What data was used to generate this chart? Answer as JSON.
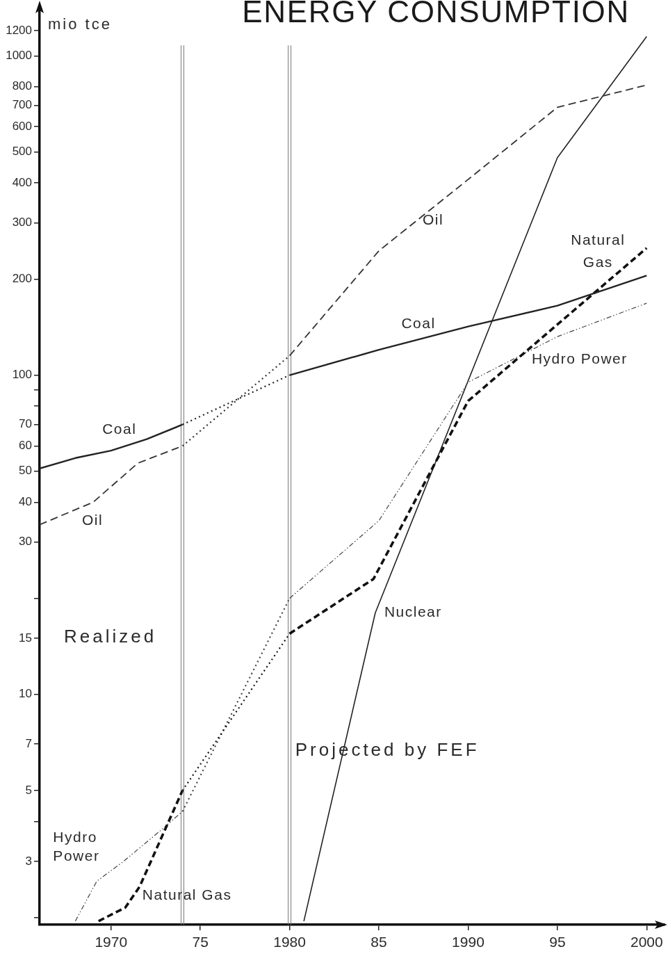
{
  "chart_data": {
    "type": "line",
    "title": "ENERGY CONSUMPTION",
    "ylabel": "mio tce",
    "annotations": [
      "Realized",
      "Projected by FEF"
    ],
    "log": "y",
    "xlim": [
      1966,
      2001
    ],
    "xticks": [
      1970,
      {
        "value": 1975,
        "label": "75"
      },
      1980,
      {
        "value": 1985,
        "label": "85"
      },
      1990,
      {
        "value": 1995,
        "label": "95"
      },
      2000
    ],
    "ylim": [
      1.9,
      1400
    ],
    "yticks": [
      {
        "value": 2,
        "label": null
      },
      3,
      {
        "value": 4,
        "label": null
      },
      5,
      7,
      10,
      15,
      {
        "value": 20,
        "label": null
      },
      30,
      40,
      50,
      60,
      70,
      {
        "value": 80,
        "label": null
      },
      {
        "value": 90,
        "label": null
      },
      100,
      200,
      300,
      400,
      500,
      600,
      700,
      800,
      1000,
      1200
    ],
    "ref_lines": [
      {
        "axis": "x",
        "value": 1974,
        "color": "#777777"
      },
      {
        "axis": "x",
        "value": 1980,
        "color": "#777777"
      }
    ],
    "series": [
      {
        "name": "Coal",
        "color": "#222222",
        "line_style": "solid",
        "x": [
          1966,
          1968,
          1970,
          1972,
          1974,
          1980,
          1985,
          1990,
          1995,
          2000
        ],
        "values": [
          51,
          55,
          58,
          63,
          70,
          100,
          120,
          142,
          165,
          205
        ]
      },
      {
        "name": "Oil",
        "color": "#333333",
        "line_style": "dashed",
        "x": [
          1966,
          1969,
          1971.5,
          1974,
          1980,
          1985,
          1990,
          1995,
          2000
        ],
        "values": [
          34,
          40,
          53,
          60,
          115,
          245,
          410,
          690,
          810
        ]
      },
      {
        "name": "Natural Gas",
        "color": "#111111",
        "line_style": "dashed",
        "x": [
          1969.3,
          1970.8,
          1971.6,
          1974,
          1980,
          1984.7,
          1990,
          2000
        ],
        "values": [
          1.95,
          2.15,
          2.5,
          5,
          15.5,
          23,
          83,
          250
        ]
      },
      {
        "name": "Hydro Power",
        "color": "#444444",
        "line_style": "dashed",
        "x": [
          1968,
          1969.2,
          1970.7,
          1972.9,
          1974,
          1980,
          1985,
          1990,
          1995,
          2000
        ],
        "values": [
          1.95,
          2.6,
          3.0,
          3.8,
          4.3,
          20,
          35,
          95,
          132,
          168
        ]
      },
      {
        "name": "Nuclear",
        "color": "#222222",
        "line_style": "solid",
        "x": [
          1980.8,
          1984.8,
          1995,
          2000
        ],
        "values": [
          1.95,
          18,
          480,
          1150
        ]
      }
    ]
  }
}
